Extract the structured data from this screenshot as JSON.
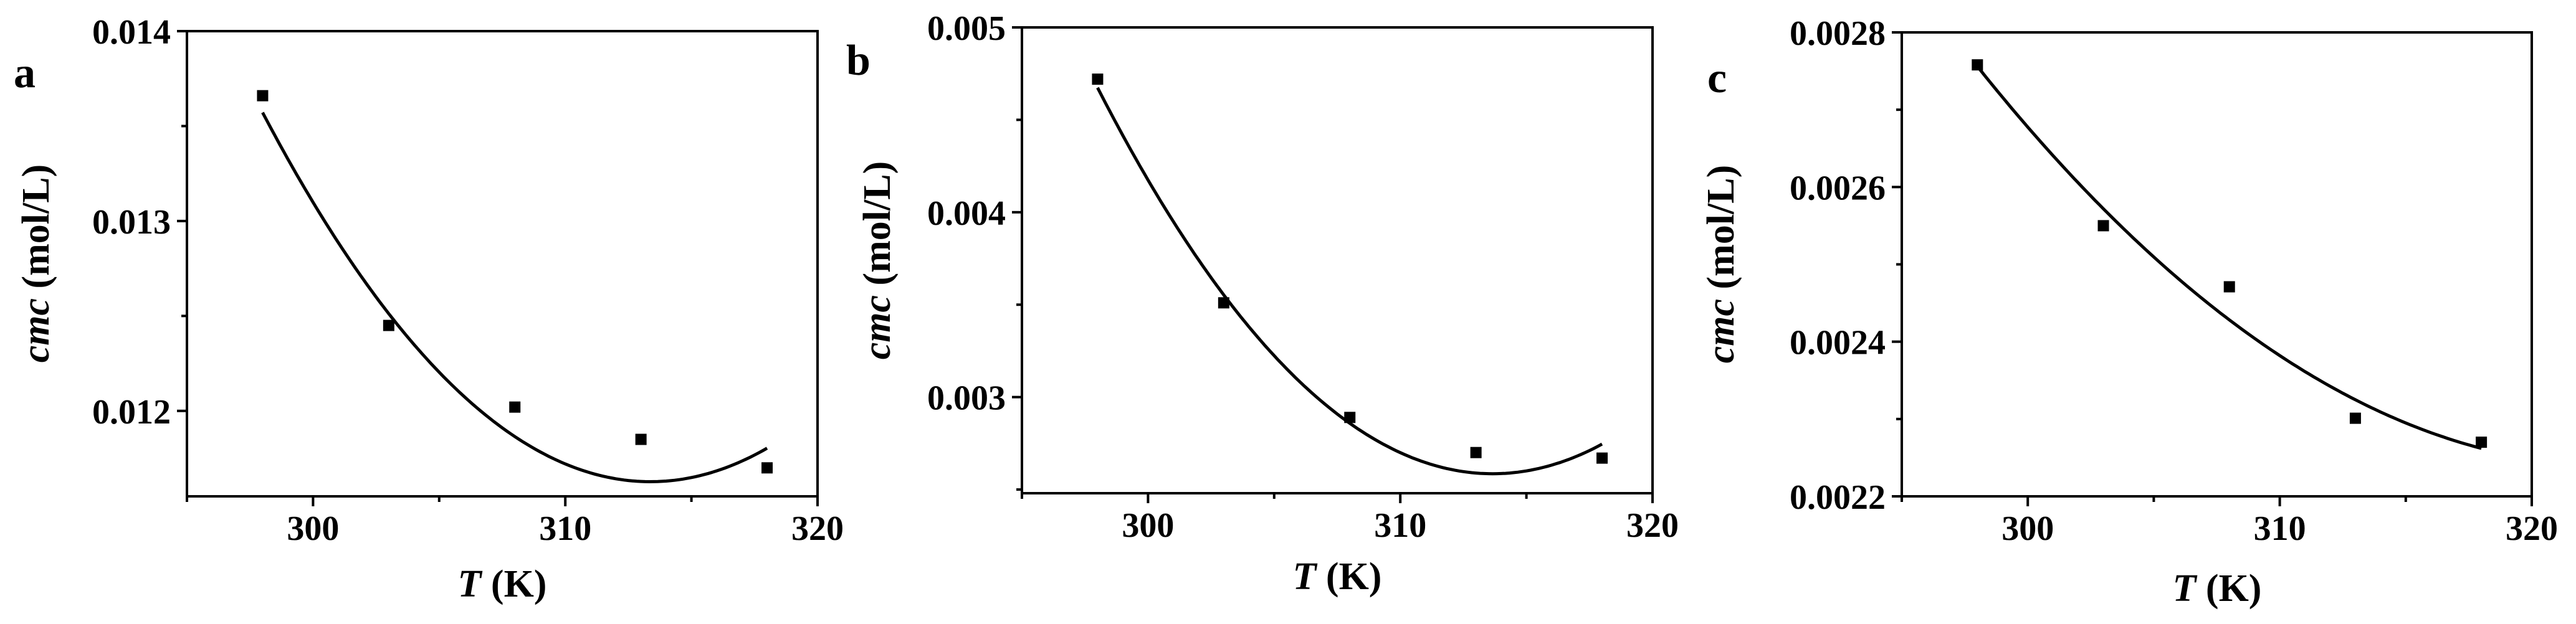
{
  "chart_data": [
    {
      "type": "scatter",
      "panel_label": "a",
      "xlabel": {
        "var": "T",
        "unit": " (K)"
      },
      "ylabel": {
        "var": "cmc",
        "unit": " (mol/L)"
      },
      "xlim": [
        295,
        320
      ],
      "ylim": [
        0.01155,
        0.014
      ],
      "xticks": [
        "300",
        "310",
        "320"
      ],
      "xtick_values": [
        300,
        310,
        320
      ],
      "yticks": [
        "0.012",
        "0.013",
        "0.014"
      ],
      "ytick_values": [
        0.012,
        0.013,
        0.014
      ],
      "series": [
        {
          "kind": "points",
          "x": [
            298,
            303,
            308,
            313,
            318
          ],
          "y": [
            0.01366,
            0.01245,
            0.01202,
            0.01185,
            0.0117
          ]
        },
        {
          "kind": "fit",
          "x": [
            298,
            303,
            308,
            313,
            318
          ],
          "y": [
            0.0136,
            0.01246,
            0.01185,
            0.0117,
            0.01177
          ]
        }
      ]
    },
    {
      "type": "scatter",
      "panel_label": "b",
      "xlabel": {
        "var": "T",
        "unit": " (K)"
      },
      "ylabel": {
        "var": "cmc",
        "unit": " (mol/L)"
      },
      "xlim": [
        295,
        320
      ],
      "ylim": [
        0.00248,
        0.005
      ],
      "xticks": [
        "300",
        "310",
        "320"
      ],
      "xtick_values": [
        300,
        310,
        320
      ],
      "yticks": [
        "0.003",
        "0.004",
        "0.005"
      ],
      "ytick_values": [
        0.003,
        0.004,
        0.005
      ],
      "series": [
        {
          "kind": "points",
          "x": [
            298,
            303,
            308,
            313,
            318
          ],
          "y": [
            0.00472,
            0.00351,
            0.00289,
            0.0027,
            0.00267
          ]
        },
        {
          "kind": "fit",
          "x": [
            298,
            303,
            308,
            313,
            318
          ],
          "y": [
            0.00469,
            0.00352,
            0.00286,
            0.00262,
            0.00273
          ]
        }
      ]
    },
    {
      "type": "scatter",
      "panel_label": "c",
      "xlabel": {
        "var": "T",
        "unit": " (K)"
      },
      "ylabel": {
        "var": "cmc",
        "unit": " (mol/L)"
      },
      "xlim": [
        295,
        320
      ],
      "ylim": [
        0.0022,
        0.0028
      ],
      "xticks": [
        "300",
        "310",
        "320"
      ],
      "xtick_values": [
        300,
        310,
        320
      ],
      "yticks": [
        "0.0022",
        "0.0024",
        "0.0026",
        "0.0028"
      ],
      "ytick_values": [
        0.0022,
        0.0024,
        0.0026,
        0.0028
      ],
      "series": [
        {
          "kind": "points",
          "x": [
            298,
            303,
            308,
            313,
            318
          ],
          "y": [
            0.002758,
            0.00255,
            0.002471,
            0.002301,
            0.00227
          ]
        },
        {
          "kind": "fit",
          "x": [
            298,
            303,
            308,
            313,
            318
          ],
          "y": [
            0.002756,
            0.002572,
            0.002428,
            0.002325,
            0.002262
          ]
        }
      ]
    }
  ]
}
